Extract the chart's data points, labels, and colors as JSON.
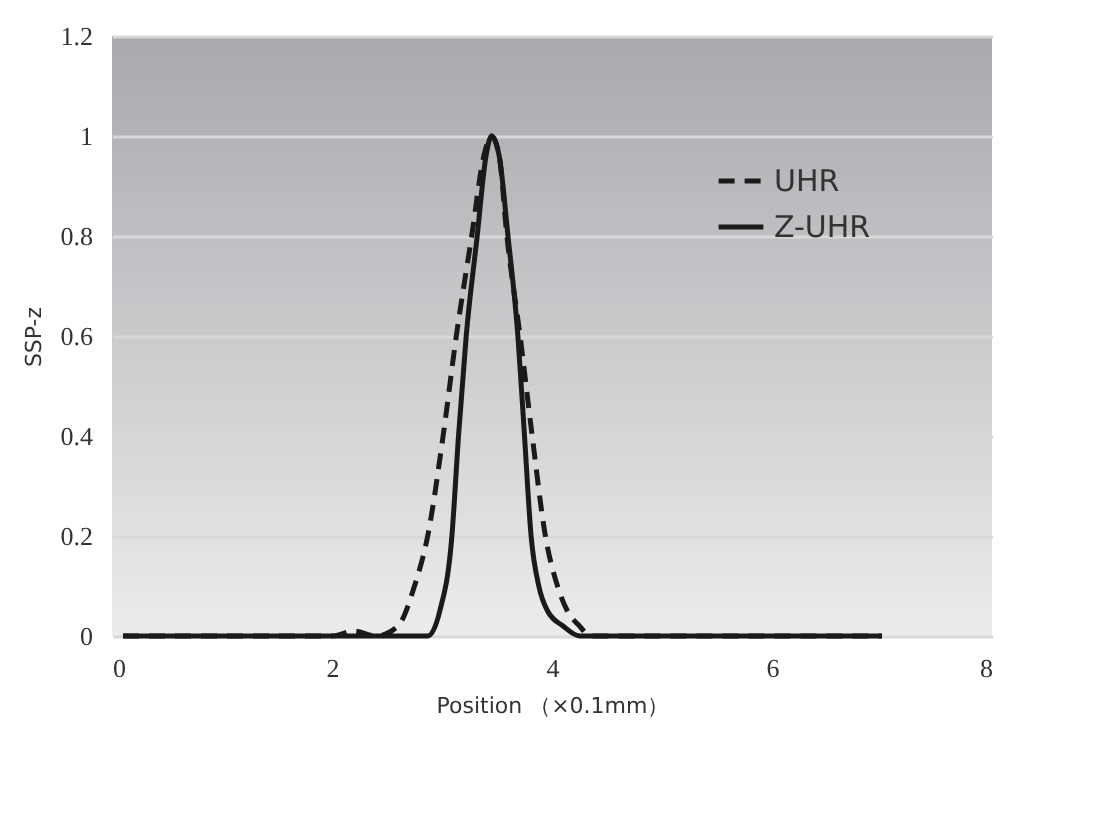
{
  "chart_data": {
    "type": "line",
    "xlabel": "Position （×0.1mm）",
    "ylabel": "SSP-z",
    "xlim": [
      0,
      8
    ],
    "xticks": [
      0,
      2,
      4,
      6,
      8
    ],
    "ylim": [
      0,
      1.2
    ],
    "yticks": [
      0,
      0.2,
      0.4,
      0.6,
      0.8,
      1,
      1.2
    ],
    "grid": "y",
    "legend": "top right",
    "marker": "none",
    "series": [
      {
        "name": "UHR",
        "color": "#1a1a1a",
        "line_style": "dashed",
        "x": [
          0.1,
          2.0,
          2.2,
          2.4,
          2.6,
          2.75,
          2.87,
          3.01,
          3.13,
          3.27,
          3.38,
          3.45,
          3.52,
          3.59,
          3.71,
          3.82,
          3.94,
          4.05,
          4.14,
          4.25,
          4.35,
          7.0
        ],
        "values": [
          0,
          0,
          0.01,
          0,
          0.02,
          0.1,
          0.2,
          0.4,
          0.6,
          0.8,
          0.96,
          1,
          0.96,
          0.8,
          0.6,
          0.4,
          0.2,
          0.1,
          0.05,
          0.02,
          0,
          0
        ]
      },
      {
        "name": "Z-UHR",
        "color": "#1a1a1a",
        "line_style": "solid",
        "x": [
          0.1,
          2.87,
          2.98,
          3.09,
          3.15,
          3.22,
          3.32,
          3.4,
          3.45,
          3.52,
          3.6,
          3.69,
          3.75,
          3.81,
          3.88,
          3.96,
          4.1,
          4.25,
          7.0
        ],
        "values": [
          0,
          0,
          0.05,
          0.2,
          0.4,
          0.6,
          0.8,
          0.96,
          1,
          0.96,
          0.8,
          0.6,
          0.4,
          0.2,
          0.1,
          0.05,
          0.02,
          0,
          0
        ]
      }
    ]
  }
}
